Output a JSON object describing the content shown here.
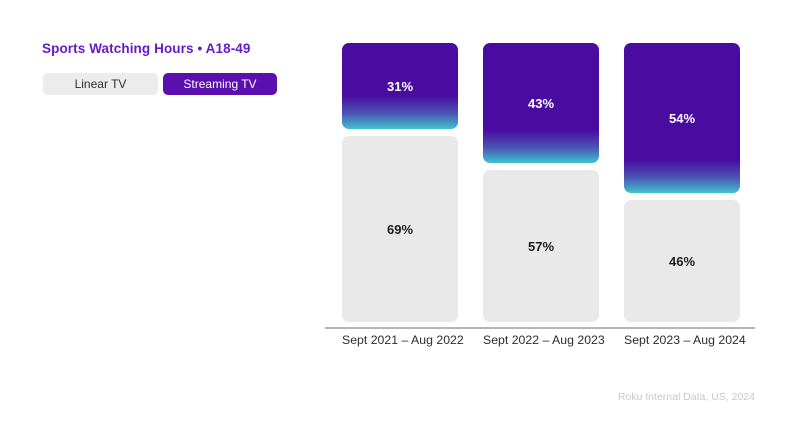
{
  "title": "Sports Watching Hours • A18-49",
  "legend": {
    "linear_label": "Linear TV",
    "streaming_label": "Streaming TV"
  },
  "footer": "Roku Internal Data, US, 2024",
  "colors": {
    "title_purple": "#661bc6",
    "streaming_button_purple": "#5b0fae",
    "linear_button_gray": "#ececec",
    "bar_purple": "#4a0ba0",
    "bar_gradient_teal": "#3fc4ce",
    "bar_gray": "#e9e9e9",
    "axis_line": "#b5b5b8",
    "footer_gray": "#c9c9cd"
  },
  "chart_data": {
    "type": "bar",
    "subtype": "stacked-100-percent",
    "title": "Sports Watching Hours • A18-49",
    "categories": [
      "Sept 2021 – Aug 2022",
      "Sept 2022 – Aug 2023",
      "Sept 2023 – Aug 2024"
    ],
    "series": [
      {
        "name": "Streaming TV",
        "values": [
          31,
          43,
          54
        ],
        "labels": [
          "31%",
          "43%",
          "54%"
        ],
        "color": "#4a0ba0"
      },
      {
        "name": "Linear TV",
        "values": [
          69,
          57,
          46
        ],
        "labels": [
          "69%",
          "57%",
          "46%"
        ],
        "color": "#e9e9e9"
      }
    ],
    "xlabel": "",
    "ylabel": "",
    "ylim": [
      0,
      100
    ],
    "grid": false,
    "legend_position": "top-left",
    "value_label_format": "percent"
  }
}
